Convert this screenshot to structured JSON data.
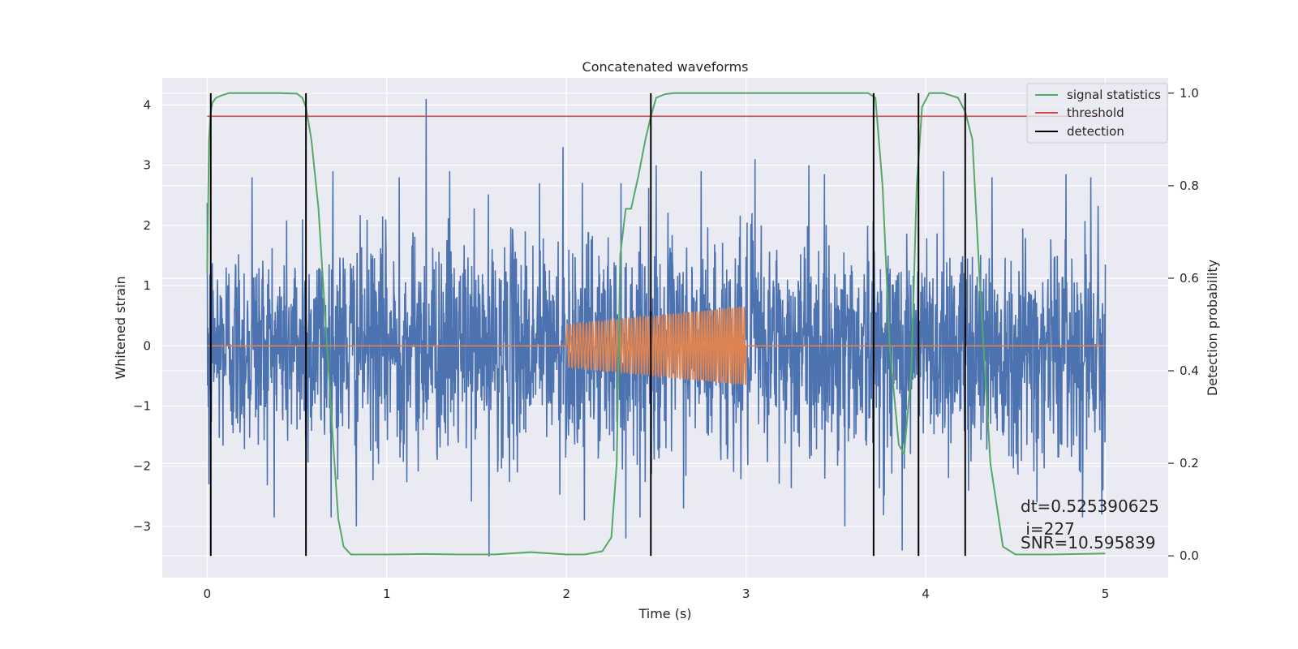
{
  "chart_data": {
    "type": "line",
    "title": "Concatenated waveforms",
    "xlabel": "Time (s)",
    "ylabel": "Whitened strain",
    "y2label": "Detection probability",
    "xlim": [
      -0.25,
      5.35
    ],
    "ylim": [
      -3.85,
      4.45
    ],
    "y2lim": [
      -0.047,
      1.033
    ],
    "xticks": [
      0,
      1,
      2,
      3,
      4,
      5
    ],
    "xtick_labels": [
      "0",
      "1",
      "2",
      "3",
      "4",
      "5"
    ],
    "yticks": [
      -3,
      -2,
      -1,
      0,
      1,
      2,
      3,
      4
    ],
    "ytick_labels": [
      "−3",
      "−2",
      "−1",
      "0",
      "1",
      "2",
      "3",
      "4"
    ],
    "y2ticks": [
      0.0,
      0.2,
      0.4,
      0.6,
      0.8,
      1.0
    ],
    "y2tick_labels": [
      "0.0",
      "0.2",
      "0.4",
      "0.6",
      "0.8",
      "1.0"
    ],
    "grid": true,
    "legend_position": "top-right",
    "legend": [
      {
        "label": "signal statistics",
        "color": "#55a868",
        "kind": "line"
      },
      {
        "label": "threshold",
        "color": "#c44e52",
        "kind": "line"
      },
      {
        "label": "detection",
        "color": "#000000",
        "kind": "line"
      }
    ],
    "series": [
      {
        "name": "whitened strain (noise)",
        "axis": "left",
        "color": "#4c72b0",
        "x_range": [
          0,
          5
        ],
        "description": "dense noisy trace, amplitude mostly within ±2.8",
        "peaks": [
          {
            "x": 0.0,
            "y": 2.37
          },
          {
            "x": 0.01,
            "y": -2.3
          },
          {
            "x": 0.25,
            "y": 2.8
          },
          {
            "x": 0.53,
            "y": 2.1
          },
          {
            "x": 0.7,
            "y": 2.9
          },
          {
            "x": 0.83,
            "y": -3.0
          },
          {
            "x": 1.07,
            "y": 2.8
          },
          {
            "x": 1.22,
            "y": 4.1
          },
          {
            "x": 1.35,
            "y": 2.9
          },
          {
            "x": 1.57,
            "y": -3.5
          },
          {
            "x": 1.85,
            "y": 2.7
          },
          {
            "x": 1.98,
            "y": 3.3
          },
          {
            "x": 2.1,
            "y": -2.9
          },
          {
            "x": 2.33,
            "y": -3.2
          },
          {
            "x": 2.5,
            "y": 3.0
          },
          {
            "x": 2.75,
            "y": 2.9
          },
          {
            "x": 3.05,
            "y": 3.1
          },
          {
            "x": 3.35,
            "y": 3.0
          },
          {
            "x": 3.55,
            "y": -3.0
          },
          {
            "x": 3.87,
            "y": -3.4
          },
          {
            "x": 4.1,
            "y": 2.9
          },
          {
            "x": 4.37,
            "y": 2.8
          },
          {
            "x": 4.62,
            "y": -2.6
          },
          {
            "x": 4.92,
            "y": 2.8
          },
          {
            "x": 4.98,
            "y": -2.8
          }
        ]
      },
      {
        "name": "injected waveform",
        "axis": "left",
        "color": "#dd8452",
        "description": "zero outside 2.0–3.0 s; chirp with envelope growing from 0.35 to 0.65",
        "chirp": {
          "start": 2.0,
          "end": 3.0,
          "amp_start": 0.35,
          "amp_end": 0.65
        }
      },
      {
        "name": "signal statistics",
        "axis": "right",
        "color": "#55a868",
        "x": [
          0.0,
          0.01,
          0.02,
          0.03,
          0.05,
          0.08,
          0.12,
          0.2,
          0.4,
          0.5,
          0.53,
          0.55,
          0.58,
          0.62,
          0.66,
          0.7,
          0.73,
          0.76,
          0.8,
          1.0,
          1.2,
          1.4,
          1.6,
          1.8,
          2.0,
          2.1,
          2.2,
          2.25,
          2.28,
          2.3,
          2.33,
          2.36,
          2.4,
          2.44,
          2.47,
          2.5,
          2.55,
          2.6,
          3.0,
          3.5,
          3.68,
          3.72,
          3.76,
          3.8,
          3.85,
          3.88,
          3.92,
          3.95,
          3.98,
          4.02,
          4.1,
          4.18,
          4.22,
          4.26,
          4.3,
          4.36,
          4.43,
          4.5,
          4.7,
          5.0
        ],
        "values": [
          0.61,
          0.9,
          0.96,
          0.98,
          0.99,
          0.995,
          1.0,
          1.0,
          1.0,
          0.999,
          0.99,
          0.97,
          0.9,
          0.75,
          0.5,
          0.25,
          0.08,
          0.02,
          0.003,
          0.003,
          0.004,
          0.003,
          0.003,
          0.008,
          0.003,
          0.003,
          0.01,
          0.04,
          0.2,
          0.65,
          0.75,
          0.75,
          0.82,
          0.9,
          0.95,
          0.99,
          0.998,
          1.0,
          1.0,
          1.0,
          1.0,
          0.99,
          0.8,
          0.45,
          0.24,
          0.22,
          0.4,
          0.8,
          0.97,
          1.0,
          1.0,
          0.99,
          0.96,
          0.9,
          0.6,
          0.2,
          0.02,
          0.003,
          0.003,
          0.005
        ]
      },
      {
        "name": "threshold",
        "axis": "right",
        "color": "#c44e52",
        "x": [
          0,
          5
        ],
        "values": [
          0.95,
          0.95
        ]
      }
    ],
    "detections": {
      "color": "#000000",
      "axis": "right",
      "x": [
        0.02,
        0.55,
        2.47,
        3.71,
        3.96,
        4.22
      ],
      "ymin": 0.0,
      "ymax": 1.0
    },
    "annotations": [
      {
        "text": "dt=0.525390625",
        "x": 4.5,
        "y": 0.11
      },
      {
        "text": " i=227",
        "x": 4.5,
        "y": 0.06
      },
      {
        "text": "SNR=10.595839",
        "x": 4.5,
        "y": 0.03
      }
    ]
  }
}
